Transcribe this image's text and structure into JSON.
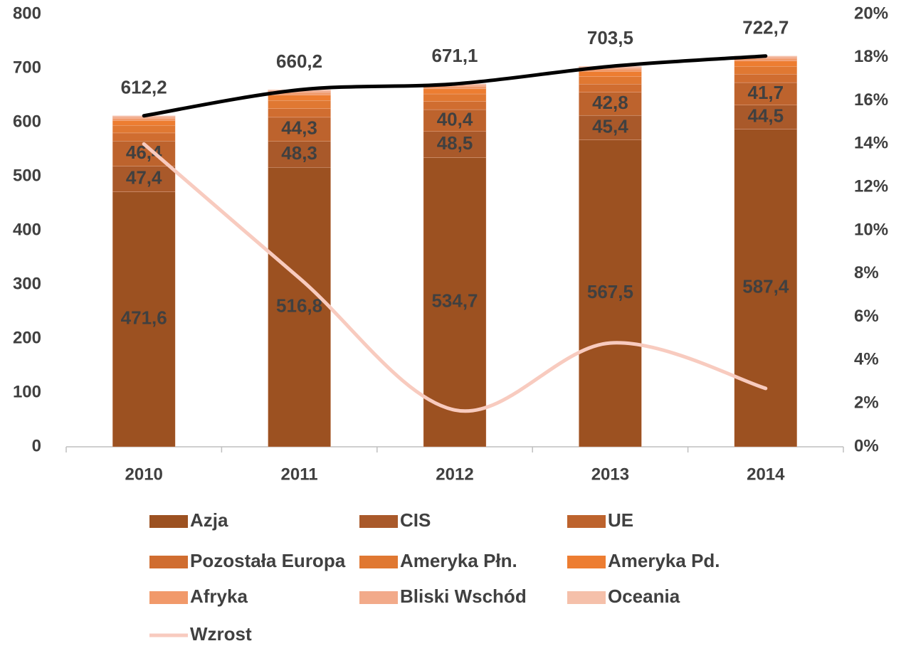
{
  "chart_data": {
    "type": "bar",
    "categories": [
      "2010",
      "2011",
      "2012",
      "2013",
      "2014"
    ],
    "series": [
      {
        "name": "Azja",
        "color": "#9c5121",
        "values": [
          471.6,
          516.8,
          534.7,
          567.5,
          587.4
        ],
        "value_labels": [
          "471,6",
          "516,8",
          "534,7",
          "567,5",
          "587,4"
        ]
      },
      {
        "name": "CIS",
        "color": "#a9592a",
        "values": [
          47.4,
          48.3,
          48.5,
          45.4,
          44.5
        ],
        "value_labels": [
          "47,4",
          "48,3",
          "48,5",
          "45,4",
          "44,5"
        ]
      },
      {
        "name": "UE",
        "color": "#bd632d",
        "values": [
          46.4,
          44.3,
          40.4,
          42.8,
          41.7
        ],
        "value_labels": [
          "46,4",
          "44,3",
          "40,4",
          "42,8",
          "41,7"
        ]
      },
      {
        "name": "Pozostała Europa",
        "color": "#d06d30",
        "values": [
          15,
          16,
          15,
          15,
          15.5
        ]
      },
      {
        "name": "Ameryka Płn.",
        "color": "#e07832",
        "values": [
          14,
          15,
          14,
          14,
          14.5
        ]
      },
      {
        "name": "Ameryka Pd.",
        "color": "#ed7d31",
        "values": [
          9,
          10,
          9.5,
          9.5,
          10
        ]
      },
      {
        "name": "Afryka",
        "color": "#f1996a",
        "values": [
          4,
          4.5,
          4.5,
          4.5,
          4.5
        ]
      },
      {
        "name": "Bliski Wschód",
        "color": "#f2aa8a",
        "values": [
          3,
          3,
          2.5,
          2.8,
          2.6
        ]
      },
      {
        "name": "Oceania",
        "color": "#f5c0aa",
        "values": [
          1.8,
          2.3,
          2,
          2,
          2
        ]
      }
    ],
    "totals": {
      "color": "#000000",
      "values": [
        612.2,
        660.2,
        671.1,
        703.5,
        722.7
      ],
      "value_labels": [
        "612,2",
        "660,2",
        "671,1",
        "703,5",
        "722,7"
      ]
    },
    "lines": [
      {
        "name": "Wzrost",
        "color": "#f8cbbf",
        "axis": "y2",
        "values": [
          14,
          7.8,
          1.7,
          4.8,
          2.7
        ]
      }
    ],
    "ylim": [
      0,
      800
    ],
    "yticks": [
      0,
      100,
      200,
      300,
      400,
      500,
      600,
      700,
      800
    ],
    "y2lim": [
      0,
      20
    ],
    "y2ticks": [
      {
        "value": 0,
        "label": "0%"
      },
      {
        "value": 2,
        "label": "2%"
      },
      {
        "value": 4,
        "label": "4%"
      },
      {
        "value": 6,
        "label": "6%"
      },
      {
        "value": 8,
        "label": "8%"
      },
      {
        "value": 10,
        "label": "10%"
      },
      {
        "value": 12,
        "label": "12%"
      },
      {
        "value": 14,
        "label": "14%"
      },
      {
        "value": 16,
        "label": "16%"
      },
      {
        "value": 18,
        "label": "18%"
      },
      {
        "value": 20,
        "label": "20%"
      }
    ],
    "grid": false,
    "legend": "bottom"
  }
}
